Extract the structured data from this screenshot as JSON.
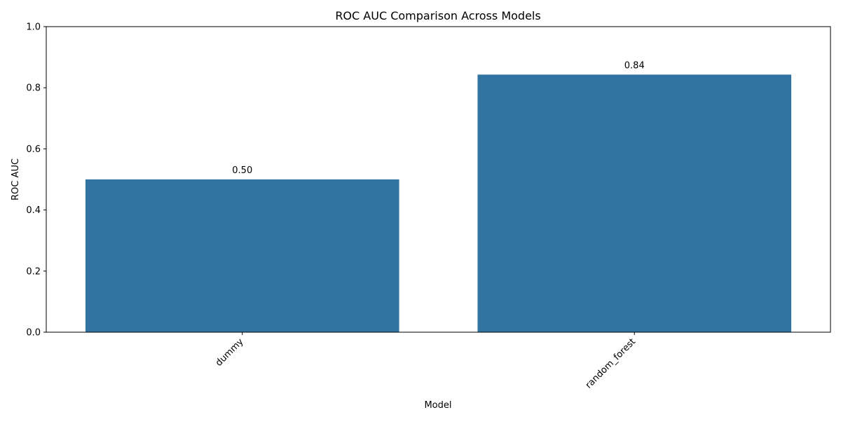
{
  "chart_data": {
    "type": "bar",
    "title": "ROC AUC Comparison Across Models",
    "xlabel": "Model",
    "ylabel": "ROC AUC",
    "categories": [
      "dummy",
      "random_forest"
    ],
    "values": [
      0.5,
      0.843
    ],
    "data_labels": [
      "0.50",
      "0.84"
    ],
    "ylim": [
      0,
      1.0
    ],
    "yticks": [
      0.0,
      0.2,
      0.4,
      0.6,
      0.8,
      1.0
    ],
    "ytick_labels": [
      "0.0",
      "0.2",
      "0.4",
      "0.6",
      "0.8",
      "1.0"
    ],
    "bar_color": "#3274a1",
    "grid": false,
    "legend": "none",
    "xtick_rotation_deg": 45
  }
}
